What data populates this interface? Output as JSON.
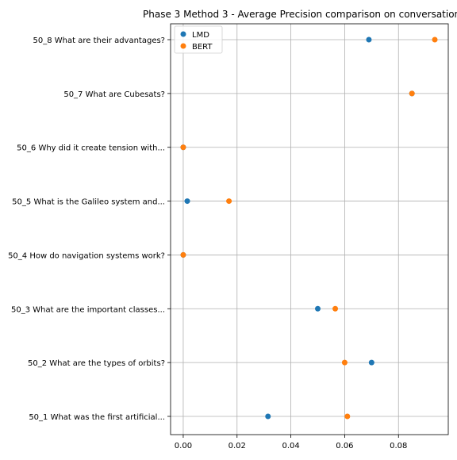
{
  "chart_data": {
    "type": "scatter",
    "title": "Phase 3 Method 3 - Average Precision comparison on conversation",
    "xlabel": "",
    "ylabel": "",
    "xlim": [
      -0.0047,
      0.0985
    ],
    "xticks": [
      0.0,
      0.02,
      0.04,
      0.06,
      0.08
    ],
    "xtick_labels": [
      "0.00",
      "0.02",
      "0.04",
      "0.06",
      "0.08"
    ],
    "categories": [
      "50_1 What was the first artificial...",
      "50_2 What are the types of orbits?",
      "50_3 What are the important classes...",
      "50_4 How do navigation systems work?",
      "50_5 What is the Galileo system and...",
      "50_6 Why did it create tension with...",
      "50_7 What are Cubesats?",
      "50_8 What are their advantages?"
    ],
    "series": [
      {
        "name": "LMD",
        "color": "#1f77b4",
        "values": [
          0.0315,
          0.07,
          0.05,
          0.0,
          0.0015,
          0.0,
          0.085,
          0.069
        ]
      },
      {
        "name": "BERT",
        "color": "#ff7f0e",
        "values": [
          0.061,
          0.06,
          0.0565,
          0.0,
          0.017,
          0.0,
          0.085,
          0.0935
        ]
      }
    ],
    "grid": true,
    "legend_position": "upper-left"
  }
}
